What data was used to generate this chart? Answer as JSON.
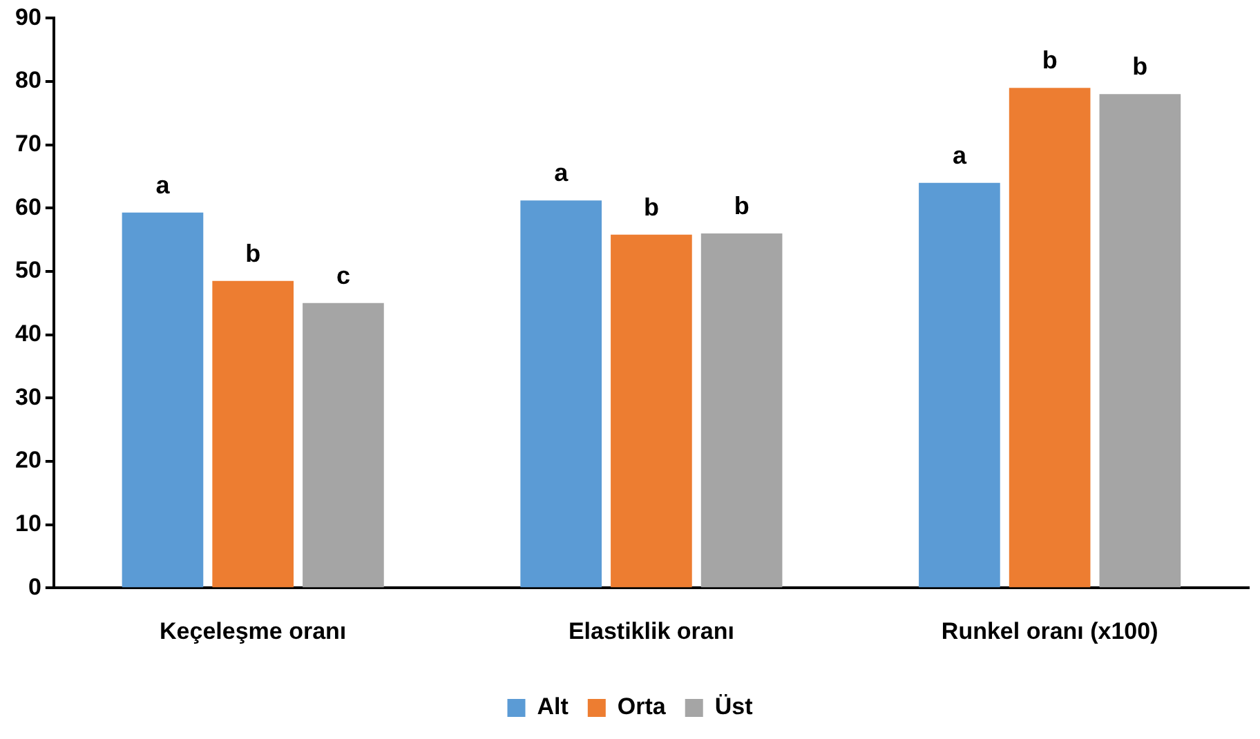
{
  "chart_data": {
    "type": "bar",
    "categories": [
      "Keçeleşme oranı",
      "Elastiklik oranı",
      "Runkel oranı (x100)"
    ],
    "series": [
      {
        "name": "Alt",
        "color": "#5b9bd5",
        "values": [
          59.3,
          61.2,
          64.0
        ],
        "value_labels": [
          "a",
          "a",
          "a"
        ]
      },
      {
        "name": "Orta",
        "color": "#ed7d31",
        "values": [
          48.5,
          55.8,
          79.0
        ],
        "value_labels": [
          "b",
          "b",
          "b"
        ]
      },
      {
        "name": "Üst",
        "color": "#a5a5a5",
        "values": [
          45.0,
          56.0,
          78.0
        ],
        "value_labels": [
          "c",
          "b",
          "b"
        ]
      }
    ],
    "ylim": [
      0,
      90
    ],
    "yticks": [
      0,
      10,
      20,
      30,
      40,
      50,
      60,
      70,
      80,
      90
    ],
    "grid": false,
    "legend": "bottom"
  }
}
